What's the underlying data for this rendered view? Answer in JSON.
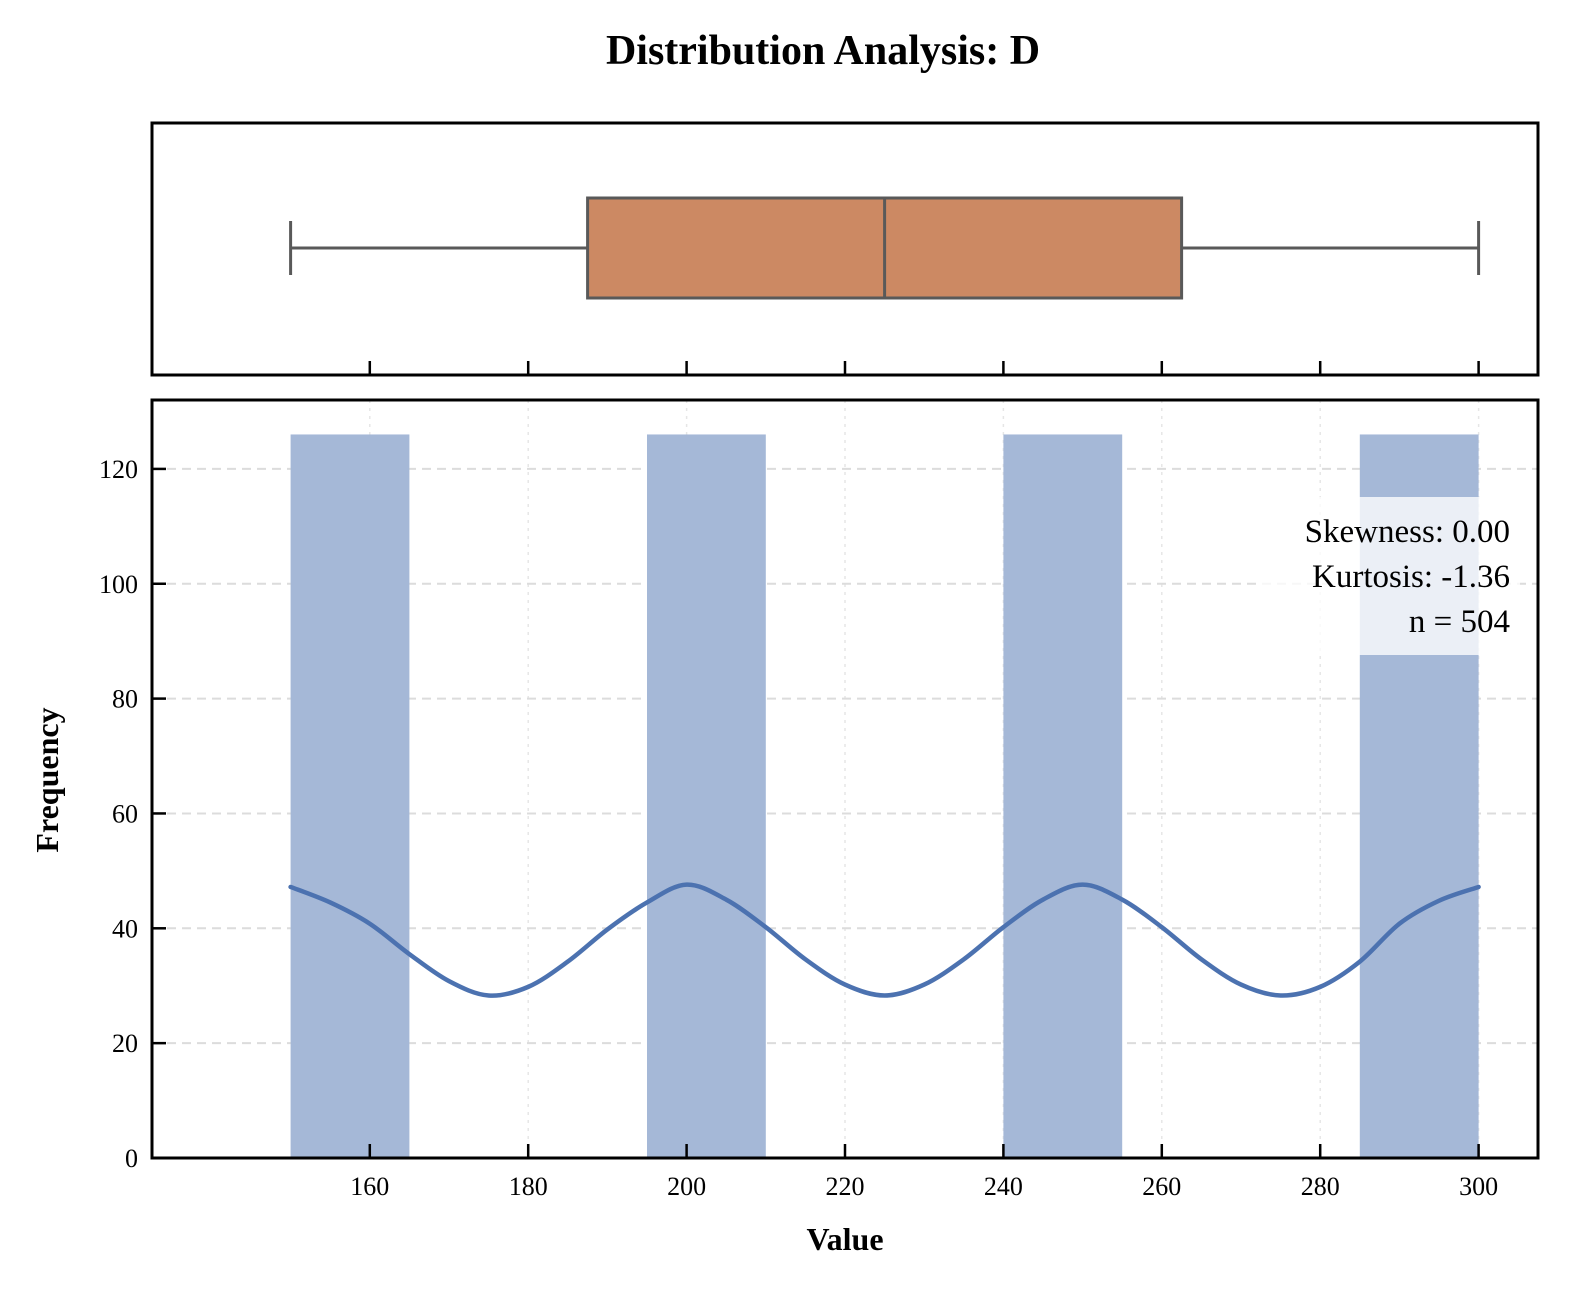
{
  "chart_data": [
    {
      "type": "box",
      "title": "Distribution Analysis: D",
      "orientation": "horizontal",
      "whisker_low": 150,
      "q1": 187.5,
      "median": 225,
      "q3": 262.5,
      "whisker_high": 300,
      "xlim": [
        132.5,
        307.5
      ],
      "box_color": "#CC8963",
      "line_color": "#595959"
    },
    {
      "type": "bar",
      "subtype": "histogram",
      "xlabel": "Value",
      "ylabel": "Frequency",
      "xlim": [
        132.5,
        307.5
      ],
      "ylim": [
        0,
        132
      ],
      "xticks": [
        160,
        180,
        200,
        220,
        240,
        260,
        280,
        300
      ],
      "yticks": [
        0,
        20,
        40,
        60,
        80,
        100,
        120
      ],
      "bins": [
        {
          "start": 150,
          "end": 165,
          "value": 126
        },
        {
          "start": 195,
          "end": 210,
          "value": 126
        },
        {
          "start": 240,
          "end": 255,
          "value": 126
        },
        {
          "start": 285,
          "end": 300,
          "value": 126
        }
      ],
      "bar_color": "#A5B8D7",
      "kde": {
        "color": "#4C72B0",
        "x": [
          150,
          155,
          160,
          165,
          170,
          175,
          180,
          185,
          190,
          195,
          200,
          205,
          210,
          215,
          220,
          225,
          230,
          235,
          240,
          245,
          250,
          255,
          260,
          265,
          270,
          275,
          280,
          285,
          290,
          295,
          300
        ],
        "y": [
          47.2,
          44.5,
          40.8,
          35.5,
          30.8,
          28.3,
          29.8,
          34.2,
          39.8,
          44.5,
          47.6,
          45.0,
          40.2,
          34.6,
          30.2,
          28.3,
          30.2,
          34.6,
          40.2,
          45.0,
          47.6,
          45.0,
          40.2,
          34.6,
          30.2,
          28.3,
          29.8,
          34.2,
          40.8,
          44.8,
          47.2
        ]
      },
      "grid": true,
      "stats_box": {
        "lines": [
          "Skewness: 0.00",
          "Kurtosis: -1.36",
          "n = 504"
        ],
        "placement": "top-right"
      }
    }
  ]
}
